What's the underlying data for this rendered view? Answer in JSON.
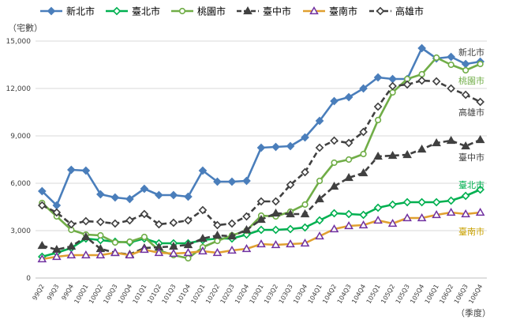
{
  "chart_data": {
    "type": "line",
    "ylabel": "（宅數）",
    "xlabel": "（季度）",
    "ylim": [
      0,
      15000
    ],
    "yticks": [
      0,
      3000,
      6000,
      9000,
      12000,
      15000
    ],
    "ytick_labels": [
      "0",
      "3,000",
      "6,000",
      "9,000",
      "12,000",
      "15,000"
    ],
    "grid": "horizontal",
    "legend_position": "top",
    "categories": [
      "99Q2",
      "99Q3",
      "99Q4",
      "100Q1",
      "100Q2",
      "100Q3",
      "100Q4",
      "101Q1",
      "101Q2",
      "101Q3",
      "101Q4",
      "102Q1",
      "102Q2",
      "102Q3",
      "102Q4",
      "103Q1",
      "103Q2",
      "103Q3",
      "103Q4",
      "104Q1",
      "104Q2",
      "104Q3",
      "104Q4",
      "105Q1",
      "105Q2",
      "105Q3",
      "105Q4",
      "106Q1",
      "106Q2",
      "106Q3",
      "106Q4"
    ],
    "x_labels": [
      "99Q2",
      "99Q3",
      "99Q4",
      "100Q1",
      "100Q2",
      "100Q3",
      "100Q4",
      "101Q1",
      "101Q2",
      "101Q3",
      "101Q4",
      "102Q1",
      "102Q2",
      "102Q3",
      "102Q4",
      "103Q1",
      "103Q2",
      "103Q3",
      "103Q4",
      "104Q1",
      "104Q2",
      "104Q3",
      "104Q4",
      "105Q1",
      "105Q2",
      "105Q3",
      "105Q4",
      "106Q1",
      "106Q2",
      "106Q3",
      "106Q4"
    ],
    "series": [
      {
        "name": "新北市",
        "color": "#4a7ebb",
        "marker": "diamond",
        "dash": "solid",
        "end_label": "新北市",
        "end_label_color": "#404040",
        "values": [
          5500,
          4600,
          6850,
          6800,
          5300,
          5100,
          5000,
          5650,
          5250,
          5250,
          5150,
          6800,
          6100,
          6100,
          6150,
          8250,
          8300,
          8350,
          8900,
          9950,
          11200,
          11450,
          12000,
          12700,
          12600,
          12600,
          14550,
          13900,
          14000,
          13550,
          13700
        ]
      },
      {
        "name": "臺北市",
        "color": "#00b050",
        "marker": "diamond-open",
        "dash": "solid",
        "end_label": "臺北市",
        "end_label_color": "#00b050",
        "values": [
          1350,
          1600,
          1900,
          2500,
          2400,
          2300,
          2250,
          2500,
          2200,
          2200,
          2200,
          2400,
          2500,
          2500,
          2750,
          3050,
          3050,
          3100,
          3200,
          3650,
          4100,
          4050,
          4000,
          4450,
          4650,
          4800,
          4800,
          4800,
          4900,
          5200,
          5600
        ]
      },
      {
        "name": "桃園市",
        "color": "#70ad47",
        "marker": "circle-open",
        "dash": "solid",
        "end_label": "桃園市",
        "end_label_color": "#70ad47",
        "values": [
          4750,
          3900,
          3050,
          2750,
          2700,
          2250,
          2300,
          2600,
          1750,
          1450,
          1250,
          1950,
          2350,
          2700,
          3000,
          3950,
          3900,
          4200,
          4650,
          6150,
          7300,
          7500,
          7850,
          10000,
          11750,
          12600,
          12900,
          13950,
          13500,
          13150,
          13550
        ]
      },
      {
        "name": "臺中市",
        "color": "#404040",
        "marker": "triangle",
        "dash": "dash",
        "end_label": "臺中市",
        "end_label_color": "#404040",
        "values": [
          2050,
          1800,
          2000,
          2600,
          1850,
          1600,
          1500,
          1900,
          1950,
          2000,
          2100,
          2500,
          2700,
          2650,
          3050,
          3700,
          4100,
          4050,
          4050,
          5000,
          5800,
          6350,
          6650,
          7700,
          7750,
          7800,
          8150,
          8550,
          8700,
          8350,
          8750
        ]
      },
      {
        "name": "臺南市",
        "color": "#7030a0",
        "marker": "triangle-open",
        "dash": "solid",
        "end_label": "臺南市",
        "end_label_color": "#c9a100",
        "line_color": "#e0a030",
        "values": [
          1200,
          1350,
          1450,
          1450,
          1450,
          1600,
          1450,
          1800,
          1600,
          1550,
          1600,
          1700,
          1600,
          1750,
          1850,
          2150,
          2100,
          2150,
          2200,
          2650,
          3100,
          3300,
          3350,
          3650,
          3450,
          3800,
          3800,
          4000,
          4150,
          4050,
          4150
        ]
      },
      {
        "name": "高雄市",
        "color": "#404040",
        "marker": "diamond-open",
        "dash": "dash",
        "end_label": "高雄市",
        "end_label_color": "#404040",
        "values": [
          4600,
          4150,
          3400,
          3600,
          3550,
          3450,
          3650,
          4050,
          3400,
          3500,
          3650,
          4300,
          3350,
          3450,
          3900,
          4850,
          4850,
          5900,
          6700,
          8250,
          8700,
          8550,
          9250,
          10850,
          12150,
          12250,
          12500,
          12450,
          12000,
          11600,
          11150
        ]
      }
    ]
  }
}
